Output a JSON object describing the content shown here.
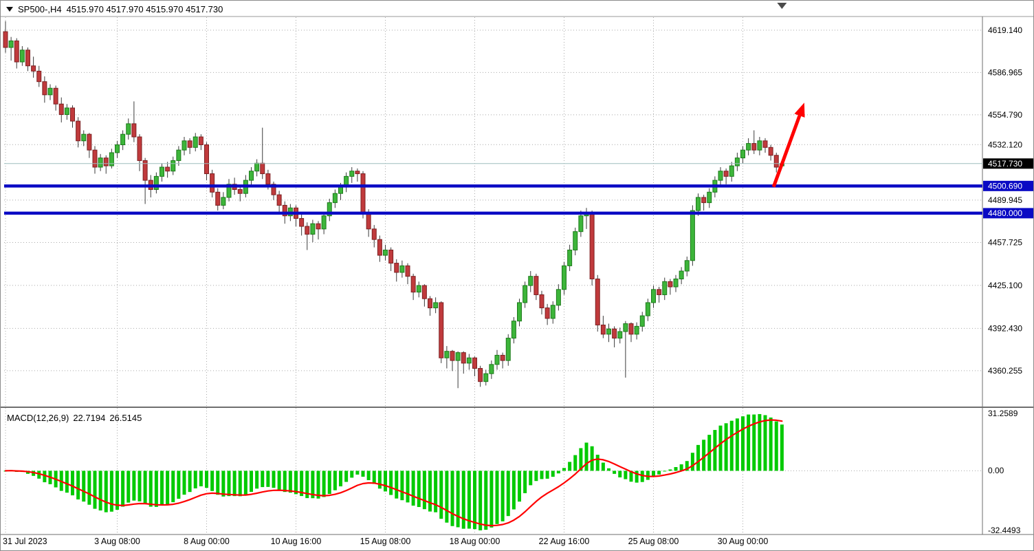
{
  "title_bar": {
    "symbol_period": "SP500-,H4",
    "ohlc": "4515.970 4517.970 4515.970 4517.730"
  },
  "colors": {
    "bull": "#3db53a",
    "bull_border": "#1c7a1a",
    "bear": "#c03a3c",
    "bear_border": "#7c2022",
    "wick": "#3a3a3a",
    "macd_hist": "#00ca00",
    "macd_signal": "#ff0000",
    "level_blue": "#0a0ac4",
    "bid_line": "#9dbdbd",
    "grid": "#a8a8a8",
    "badge_black": "#000000",
    "arrow_red": "#ff0000"
  },
  "chart_data": {
    "type": "candlestick",
    "symbol": "SP500-",
    "timeframe": "H4",
    "y_axis": {
      "max": 4629,
      "min": 4333,
      "ticks": [
        "4619.140",
        "4586.965",
        "4554.790",
        "4532.120",
        "4489.945",
        "4457.725",
        "4425.100",
        "4392.430",
        "4360.255"
      ]
    },
    "price_lines": {
      "bid": 4517.73,
      "bid_label": "4517.730",
      "resistance": 4500.69,
      "resistance_label": "4500.690",
      "support": 4480.0,
      "support_label": "4480.000"
    },
    "x_ticks": [
      {
        "label": "31 Jul 2023",
        "bar": 0
      },
      {
        "label": "3 Aug 08:00",
        "bar": 20
      },
      {
        "label": "8 Aug 00:00",
        "bar": 36
      },
      {
        "label": "10 Aug 16:00",
        "bar": 52
      },
      {
        "label": "15 Aug 08:00",
        "bar": 68
      },
      {
        "label": "18 Aug 00:00",
        "bar": 84
      },
      {
        "label": "22 Aug 16:00",
        "bar": 100
      },
      {
        "label": "25 Aug 08:00",
        "bar": 116
      },
      {
        "label": "30 Aug 00:00",
        "bar": 132
      }
    ],
    "candles": [
      [
        4618,
        4626,
        4602,
        4606
      ],
      [
        4606,
        4614,
        4596,
        4611
      ],
      [
        4611,
        4613,
        4590,
        4595
      ],
      [
        4595,
        4607,
        4592,
        4604
      ],
      [
        4604,
        4606,
        4588,
        4592
      ],
      [
        4592,
        4599,
        4583,
        4588
      ],
      [
        4588,
        4592,
        4576,
        4580
      ],
      [
        4580,
        4584,
        4564,
        4570
      ],
      [
        4570,
        4578,
        4566,
        4575
      ],
      [
        4575,
        4577,
        4558,
        4563
      ],
      [
        4563,
        4568,
        4549,
        4555
      ],
      [
        4555,
        4563,
        4551,
        4560
      ],
      [
        4560,
        4562,
        4545,
        4550
      ],
      [
        4550,
        4553,
        4530,
        4535
      ],
      [
        4535,
        4543,
        4531,
        4540
      ],
      [
        4540,
        4541,
        4522,
        4528
      ],
      [
        4528,
        4531,
        4510,
        4515
      ],
      [
        4515,
        4525,
        4512,
        4522
      ],
      [
        4522,
        4524,
        4510,
        4516
      ],
      [
        4516,
        4529,
        4514,
        4526
      ],
      [
        4526,
        4535,
        4522,
        4532
      ],
      [
        4532,
        4543,
        4528,
        4540
      ],
      [
        4540,
        4552,
        4536,
        4548
      ],
      [
        4548,
        4565,
        4534,
        4538
      ],
      [
        4538,
        4540,
        4512,
        4520
      ],
      [
        4520,
        4522,
        4487,
        4505
      ],
      [
        4505,
        4509,
        4492,
        4498
      ],
      [
        4498,
        4511,
        4495,
        4508
      ],
      [
        4508,
        4518,
        4504,
        4515
      ],
      [
        4515,
        4519,
        4507,
        4512
      ],
      [
        4512,
        4523,
        4509,
        4520
      ],
      [
        4520,
        4531,
        4516,
        4528
      ],
      [
        4528,
        4538,
        4524,
        4535
      ],
      [
        4535,
        4537,
        4525,
        4530
      ],
      [
        4530,
        4541,
        4527,
        4538
      ],
      [
        4538,
        4540,
        4528,
        4532
      ],
      [
        4532,
        4534,
        4505,
        4510
      ],
      [
        4510,
        4513,
        4492,
        4496
      ],
      [
        4496,
        4499,
        4482,
        4486
      ],
      [
        4486,
        4496,
        4483,
        4492
      ],
      [
        4492,
        4506,
        4489,
        4502
      ],
      [
        4502,
        4507,
        4494,
        4498
      ],
      [
        4498,
        4501,
        4489,
        4495
      ],
      [
        4495,
        4509,
        4492,
        4505
      ],
      [
        4505,
        4515,
        4501,
        4512
      ],
      [
        4512,
        4521,
        4508,
        4518
      ],
      [
        4518,
        4545,
        4506,
        4510
      ],
      [
        4510,
        4513,
        4498,
        4502
      ],
      [
        4502,
        4504,
        4490,
        4494
      ],
      [
        4494,
        4497,
        4481,
        4486
      ],
      [
        4486,
        4489,
        4472,
        4478
      ],
      [
        4478,
        4487,
        4474,
        4484
      ],
      [
        4484,
        4486,
        4470,
        4476
      ],
      [
        4476,
        4480,
        4463,
        4470
      ],
      [
        4470,
        4473,
        4452,
        4464
      ],
      [
        4464,
        4475,
        4458,
        4472
      ],
      [
        4472,
        4474,
        4460,
        4468
      ],
      [
        4468,
        4481,
        4464,
        4478
      ],
      [
        4478,
        4491,
        4474,
        4488
      ],
      [
        4488,
        4498,
        4484,
        4495
      ],
      [
        4495,
        4503,
        4490,
        4500
      ],
      [
        4500,
        4511,
        4496,
        4508
      ],
      [
        4508,
        4515,
        4503,
        4512
      ],
      [
        4512,
        4514,
        4504,
        4510
      ],
      [
        4510,
        4512,
        4476,
        4480
      ],
      [
        4480,
        4483,
        4462,
        4468
      ],
      [
        4468,
        4471,
        4454,
        4460
      ],
      [
        4460,
        4463,
        4443,
        4448
      ],
      [
        4448,
        4456,
        4444,
        4452
      ],
      [
        4452,
        4454,
        4436,
        4442
      ],
      [
        4442,
        4445,
        4428,
        4435
      ],
      [
        4435,
        4444,
        4431,
        4440
      ],
      [
        4440,
        4442,
        4426,
        4432
      ],
      [
        4432,
        4434,
        4414,
        4420
      ],
      [
        4420,
        4428,
        4416,
        4425
      ],
      [
        4425,
        4426,
        4409,
        4415
      ],
      [
        4415,
        4417,
        4402,
        4408
      ],
      [
        4408,
        4416,
        4404,
        4412
      ],
      [
        4412,
        4413,
        4366,
        4370
      ],
      [
        4370,
        4379,
        4362,
        4375
      ],
      [
        4375,
        4376,
        4360,
        4368
      ],
      [
        4368,
        4375,
        4347,
        4374
      ],
      [
        4374,
        4375,
        4358,
        4366
      ],
      [
        4366,
        4373,
        4361,
        4370
      ],
      [
        4370,
        4371,
        4356,
        4362
      ],
      [
        4362,
        4364,
        4348,
        4352
      ],
      [
        4352,
        4361,
        4349,
        4358
      ],
      [
        4358,
        4368,
        4354,
        4365
      ],
      [
        4365,
        4376,
        4361,
        4372
      ],
      [
        4372,
        4374,
        4362,
        4368
      ],
      [
        4368,
        4388,
        4364,
        4385
      ],
      [
        4385,
        4401,
        4381,
        4398
      ],
      [
        4398,
        4415,
        4394,
        4412
      ],
      [
        4412,
        4428,
        4408,
        4425
      ],
      [
        4425,
        4436,
        4420,
        4432
      ],
      [
        4432,
        4434,
        4414,
        4418
      ],
      [
        4418,
        4421,
        4403,
        4408
      ],
      [
        4408,
        4411,
        4395,
        4400
      ],
      [
        4400,
        4413,
        4396,
        4410
      ],
      [
        4410,
        4426,
        4406,
        4422
      ],
      [
        4422,
        4443,
        4418,
        4440
      ],
      [
        4440,
        4456,
        4436,
        4452
      ],
      [
        4452,
        4469,
        4448,
        4466
      ],
      [
        4466,
        4482,
        4462,
        4478
      ],
      [
        4478,
        4484,
        4468,
        4480
      ],
      [
        4480,
        4482,
        4425,
        4430
      ],
      [
        4430,
        4433,
        4390,
        4395
      ],
      [
        4395,
        4402,
        4385,
        4388
      ],
      [
        4388,
        4396,
        4382,
        4392
      ],
      [
        4392,
        4394,
        4378,
        4385
      ],
      [
        4385,
        4393,
        4381,
        4390
      ],
      [
        4390,
        4398,
        4355,
        4396
      ],
      [
        4396,
        4397,
        4382,
        4388
      ],
      [
        4388,
        4397,
        4384,
        4394
      ],
      [
        4394,
        4405,
        4390,
        4402
      ],
      [
        4402,
        4415,
        4398,
        4412
      ],
      [
        4412,
        4425,
        4408,
        4422
      ],
      [
        4422,
        4424,
        4412,
        4418
      ],
      [
        4418,
        4431,
        4414,
        4428
      ],
      [
        4428,
        4430,
        4418,
        4424
      ],
      [
        4424,
        4433,
        4420,
        4430
      ],
      [
        4430,
        4439,
        4426,
        4436
      ],
      [
        4436,
        4447,
        4432,
        4444
      ],
      [
        4444,
        4486,
        4440,
        4482
      ],
      [
        4482,
        4495,
        4478,
        4492
      ],
      [
        4492,
        4494,
        4482,
        4488
      ],
      [
        4488,
        4499,
        4484,
        4496
      ],
      [
        4496,
        4508,
        4492,
        4505
      ],
      [
        4505,
        4515,
        4501,
        4512
      ],
      [
        4512,
        4514,
        4502,
        4508
      ],
      [
        4508,
        4519,
        4504,
        4516
      ],
      [
        4516,
        4526,
        4512,
        4522
      ],
      [
        4522,
        4531,
        4518,
        4528
      ],
      [
        4528,
        4537,
        4524,
        4533
      ],
      [
        4533,
        4543,
        4525,
        4528
      ],
      [
        4528,
        4538,
        4524,
        4535
      ],
      [
        4535,
        4537,
        4526,
        4530
      ],
      [
        4530,
        4532,
        4520,
        4524
      ],
      [
        4524,
        4526,
        4511,
        4515
      ],
      [
        4515.97,
        4517.97,
        4515.97,
        4517.73
      ]
    ],
    "macd": {
      "label": "MACD(12,26,9)",
      "main_value": "22.7194",
      "signal_value": "26.5145",
      "axis_max": 31.2589,
      "axis_min": -32.4493,
      "axis_ticks": [
        "31.2589",
        "0.00",
        "-32.4493"
      ]
    }
  },
  "annotations": {
    "arrow": {
      "color": "#ff0000",
      "from": {
        "bar": 137.5,
        "price": 4500
      },
      "to": {
        "bar": 143,
        "price": 4564
      }
    }
  }
}
